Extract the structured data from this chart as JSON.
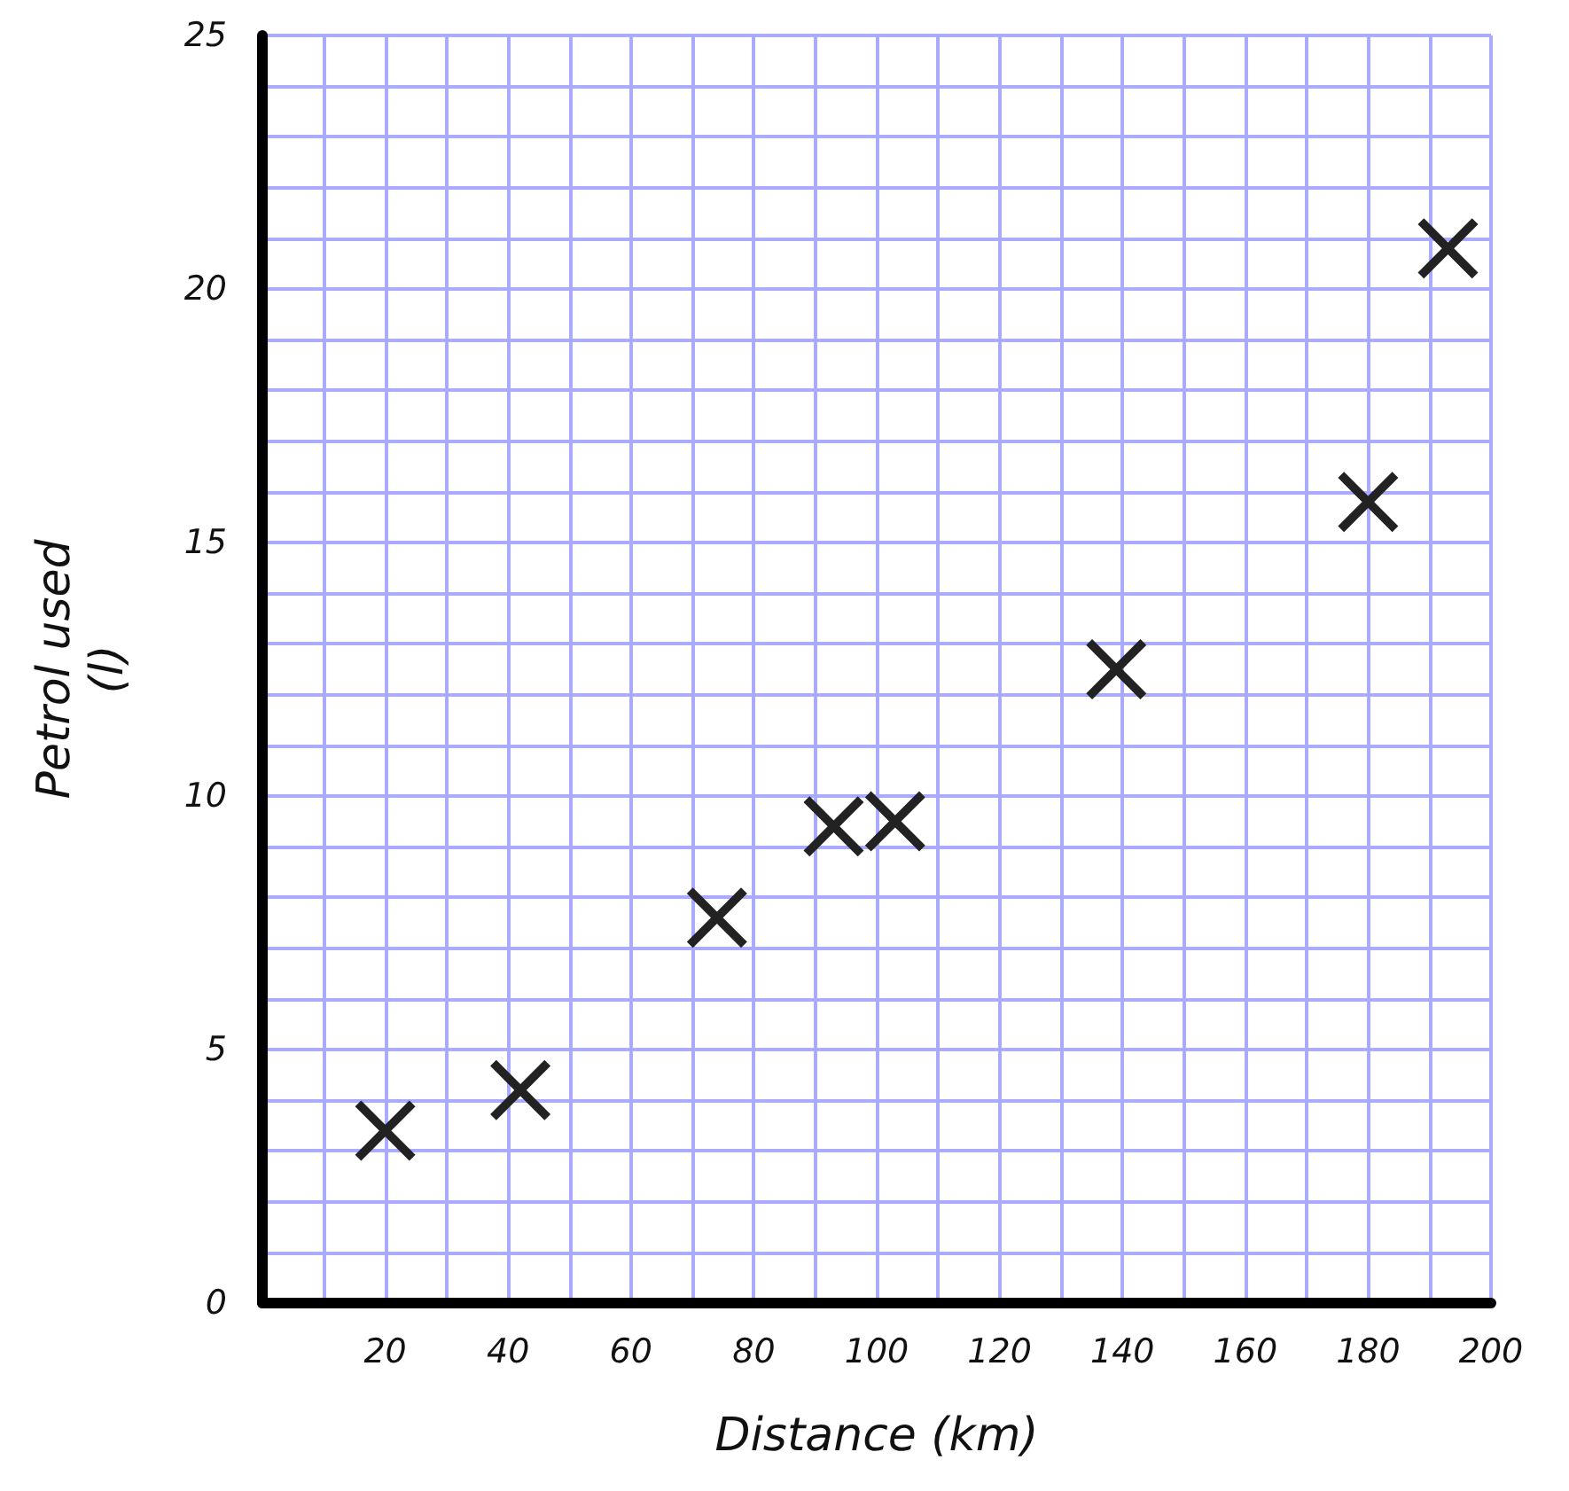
{
  "chart_data": {
    "type": "scatter",
    "xlabel": "Distance (km)",
    "ylabel": "Petrol used\n(l)",
    "x": [
      20,
      42,
      74,
      93,
      103,
      139,
      180,
      193
    ],
    "values": [
      3.4,
      4.2,
      7.6,
      9.4,
      9.5,
      12.5,
      15.8,
      20.8
    ],
    "color": "#222222",
    "marker": "cross",
    "grid": true,
    "xlim": [
      0,
      200
    ],
    "xticks": [
      20,
      40,
      60,
      80,
      100,
      120,
      140,
      160,
      180,
      200
    ],
    "ylim": [
      0,
      25
    ],
    "yticks": [
      0,
      5,
      10,
      15,
      20,
      25
    ]
  }
}
